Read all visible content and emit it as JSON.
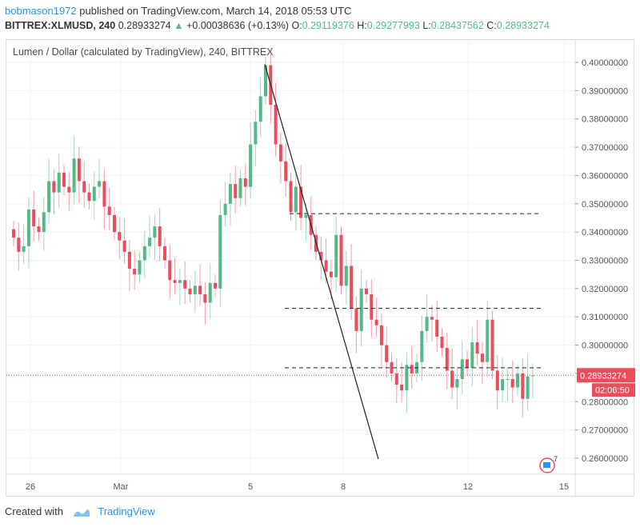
{
  "header": {
    "author": "bobmason1972",
    "published_text": "published on TradingView.com, March 14, 2018 05:53 UTC",
    "symbol": "BITTREX:XLMUSD, 240",
    "price": "0.28933274",
    "change": "+0.00038636 (+0.13%)",
    "o_label": "O:",
    "o_value": "0.29119376",
    "h_label": "H:",
    "h_value": "0.29277993",
    "l_label": "L:",
    "l_value": "0.28437562",
    "c_label": "C:",
    "c_value": "0.28933274"
  },
  "chart_title": "Lumen / Dollar (calculated by TradingView), 240, BITTREX",
  "price_badge": "0.28933274",
  "countdown": "02:06:50",
  "footer": {
    "created_with": "Created with",
    "brand": "TradingView"
  },
  "colors": {
    "up": "#53b987",
    "down": "#eb4d5c",
    "grid": "#f0f3f5",
    "accent": "#2196f3"
  },
  "chart_data": {
    "type": "candlestick",
    "x_ticks": [
      "26",
      "Mar",
      "5",
      "8",
      "12",
      "15"
    ],
    "ylim": [
      0.25,
      0.405
    ],
    "y_ticks": [
      "0.40000000",
      "0.39000000",
      "0.38000000",
      "0.37000000",
      "0.36000000",
      "0.35000000",
      "0.34000000",
      "0.33000000",
      "0.32000000",
      "0.31000000",
      "0.30000000",
      "0.29000000",
      "0.28000000",
      "0.27000000",
      "0.26000000"
    ],
    "last_price": 0.28933274,
    "closes": [
      0.338,
      0.333,
      0.335,
      0.348,
      0.342,
      0.34,
      0.347,
      0.358,
      0.354,
      0.361,
      0.356,
      0.354,
      0.366,
      0.358,
      0.354,
      0.351,
      0.356,
      0.358,
      0.349,
      0.346,
      0.34,
      0.337,
      0.333,
      0.327,
      0.325,
      0.33,
      0.335,
      0.338,
      0.342,
      0.335,
      0.33,
      0.323,
      0.322,
      0.323,
      0.32,
      0.318,
      0.321,
      0.318,
      0.315,
      0.322,
      0.32,
      0.346,
      0.35,
      0.357,
      0.352,
      0.359,
      0.356,
      0.371,
      0.379,
      0.388,
      0.399,
      0.385,
      0.371,
      0.365,
      0.358,
      0.347,
      0.356,
      0.345,
      0.346,
      0.339,
      0.333,
      0.33,
      0.326,
      0.324,
      0.339,
      0.321,
      0.328,
      0.313,
      0.305,
      0.32,
      0.318,
      0.309,
      0.307,
      0.3,
      0.294,
      0.29,
      0.286,
      0.284,
      0.293,
      0.29,
      0.294,
      0.305,
      0.31,
      0.309,
      0.303,
      0.299,
      0.291,
      0.285,
      0.288,
      0.295,
      0.292,
      0.301,
      0.297,
      0.294,
      0.309,
      0.291,
      0.284,
      0.288,
      0.288,
      0.285,
      0.29,
      0.281,
      0.289,
      0.2893
    ]
  }
}
